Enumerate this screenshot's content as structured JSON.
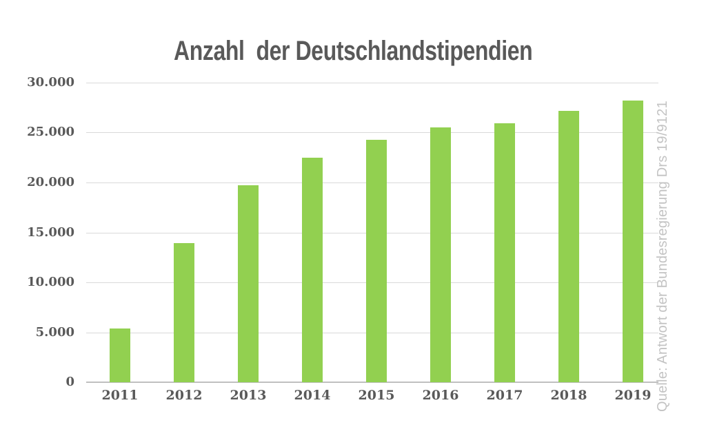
{
  "chart_data": {
    "type": "bar",
    "title": "Anzahl  der Deutschlandstipendien",
    "source": "Quelle: Antwort der Bundesregierung Drs 19/9121",
    "categories": [
      "2011",
      "2012",
      "2013",
      "2014",
      "2015",
      "2016",
      "2017",
      "2018",
      "2019"
    ],
    "values": [
      5400,
      13900,
      19700,
      22500,
      24300,
      25500,
      25900,
      27200,
      28200
    ],
    "xlabel": "",
    "ylabel": "",
    "ylim": [
      0,
      30000
    ],
    "yticks": [
      {
        "label": "0",
        "value": 0
      },
      {
        "label": "5.000",
        "value": 5000
      },
      {
        "label": "10.000",
        "value": 10000
      },
      {
        "label": "15.000",
        "value": 15000
      },
      {
        "label": "20.000",
        "value": 20000
      },
      {
        "label": "25.000",
        "value": 25000
      },
      {
        "label": "30.000",
        "value": 30000
      }
    ],
    "grid": true,
    "legend": false,
    "legend_position": "none",
    "colors": {
      "bar": "#92D050",
      "gridline": "#D9D9D9",
      "axis_line": "#BFBFBF",
      "tick_label": "#595959",
      "title": "#595959",
      "source": "#C3C3C3",
      "background": "#FFFFFF"
    }
  }
}
